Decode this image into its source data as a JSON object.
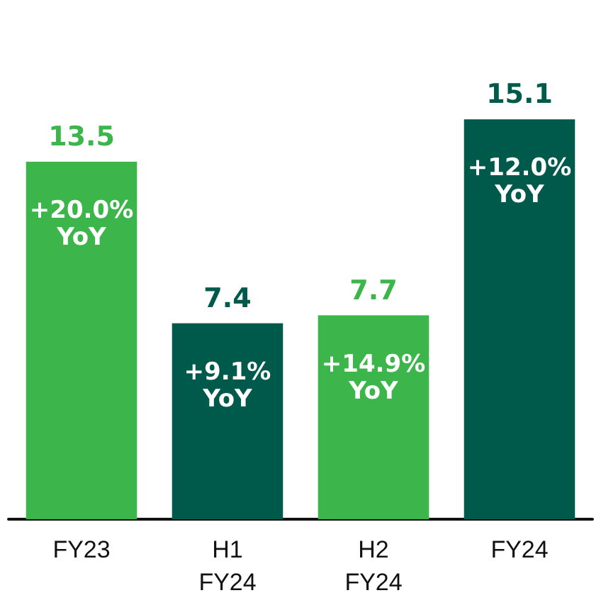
{
  "chart_data": {
    "type": "bar",
    "categories": [
      "FY23",
      "H1\nFY24",
      "H2\nFY24",
      "FY24"
    ],
    "values": [
      13.5,
      7.4,
      7.7,
      15.1
    ],
    "colors": [
      "#3cb54a",
      "#005a4b",
      "#3cb54a",
      "#005a4b"
    ],
    "data_labels": true,
    "tick_labels": "x",
    "annotations": [
      {
        "text": "+20.0%\nYoY",
        "x": "FY23",
        "y": 13.5
      },
      {
        "text": "+9.1%\nYoY",
        "x": "H1\nFY24",
        "y": 7.4
      },
      {
        "text": "+14.9%\nYoY",
        "x": "H2\nFY24",
        "y": 7.7
      },
      {
        "text": "+12.0%\nYoY",
        "x": "FY24",
        "y": 15.1
      }
    ]
  }
}
